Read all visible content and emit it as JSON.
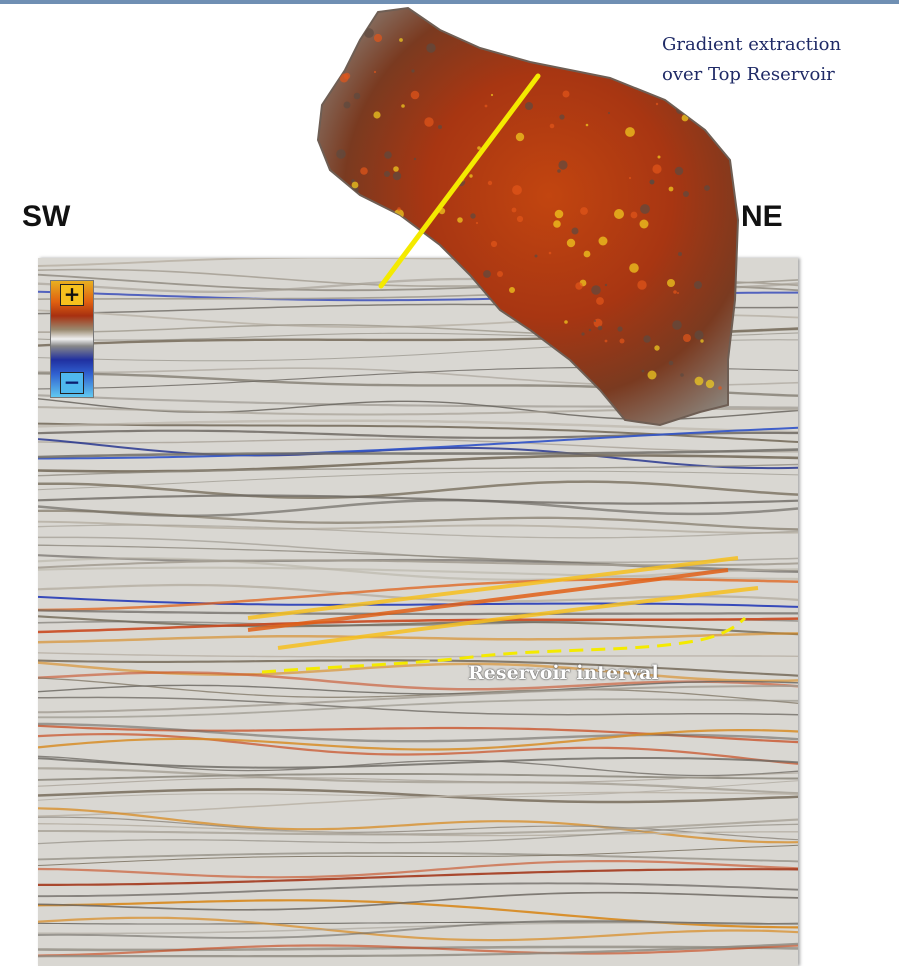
{
  "labels": {
    "left_direction": "SW",
    "right_direction": "NE",
    "caption_line1": "Gradient extraction",
    "caption_line2": "over Top Reservoir",
    "reservoir": "Reservoir interval"
  },
  "color_scale": {
    "positive": "+",
    "negative": "−"
  },
  "colors": {
    "caption": "#1f2a66",
    "highlight_line": "#f4ea00",
    "positive_amplitude": "#e2561a",
    "negative_amplitude": "#2a3fb8",
    "strong_amplitude": "#f6c01e"
  }
}
